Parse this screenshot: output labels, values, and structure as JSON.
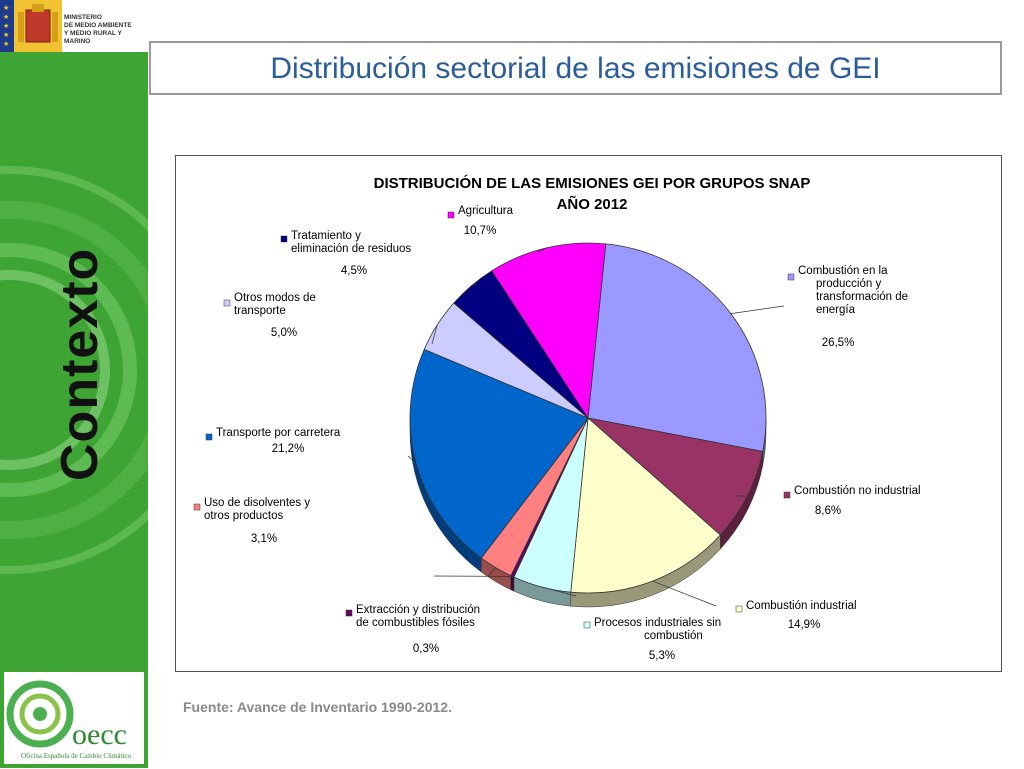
{
  "sidebar": {
    "ministry_line1": "MINISTERIO",
    "ministry_line2": "DE MEDIO AMBIENTE",
    "ministry_line3": "Y MEDIO RURAL Y MARINO",
    "section": "Contexto",
    "logo_name": "oecc",
    "logo_subtitle": "Oficina Española de Cambio Climático"
  },
  "slide": {
    "title": "Distribución sectorial de las emisiones de GEI",
    "source": "Fuente: Avance de Inventario 1990-2012."
  },
  "colors": {
    "side_green": "#3ea534",
    "title_blue": "#2b5d9b"
  },
  "chart_data": {
    "type": "pie",
    "title": "DISTRIBUCIÓN DE LAS EMISIONES GEI POR GRUPOS SNAP",
    "subtitle": "AÑO 2012",
    "unit": "%",
    "legend_placement": "labels around pie",
    "slices": [
      {
        "name": "Combustión en la producción y transformación de energía",
        "value": 26.5,
        "label": "26,5%",
        "color": "#9999ff"
      },
      {
        "name": "Combustión no industrial",
        "value": 8.6,
        "label": "8,6%",
        "color": "#993366"
      },
      {
        "name": "Combustión industrial",
        "value": 14.9,
        "label": "14,9%",
        "color": "#ffffcc"
      },
      {
        "name": "Procesos industriales sin combustión",
        "value": 5.3,
        "label": "5,3%",
        "color": "#ccffff"
      },
      {
        "name": "Extracción y distribución de combustibles fósiles",
        "value": 0.3,
        "label": "0,3%",
        "color": "#660066"
      },
      {
        "name": "Uso de disolventes y otros productos",
        "value": 3.1,
        "label": "3,1%",
        "color": "#ff8080"
      },
      {
        "name": "Transporte por carretera",
        "value": 21.2,
        "label": "21,2%",
        "color": "#0066cc"
      },
      {
        "name": "Otros modos de transporte",
        "value": 5.0,
        "label": "5,0%",
        "color": "#ccccff"
      },
      {
        "name": "Tratamiento y eliminación de residuos",
        "value": 4.5,
        "label": "4,5%",
        "color": "#000080"
      },
      {
        "name": "Agricultura",
        "value": 10.7,
        "label": "10,7%",
        "color": "#ff00ff"
      }
    ]
  }
}
